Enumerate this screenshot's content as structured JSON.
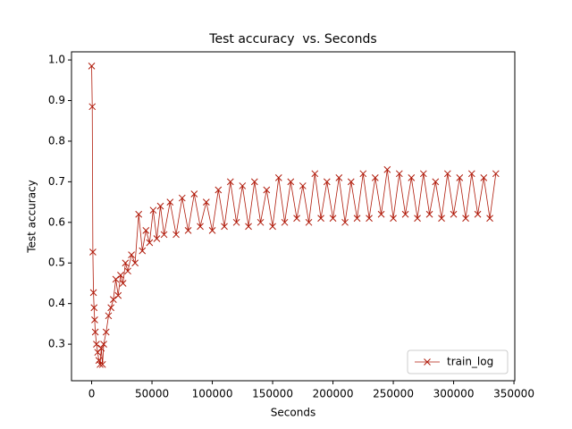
{
  "chart_data": {
    "type": "line",
    "title": "Test accuracy  vs. Seconds",
    "x_label": "Seconds",
    "y_label": "Test accuracy",
    "x": [
      0,
      500,
      1000,
      1500,
      2000,
      2500,
      3000,
      4000,
      5000,
      6000,
      7000,
      8000,
      9000,
      10000,
      12000,
      14000,
      16000,
      18000,
      20000,
      22000,
      24000,
      26000,
      28000,
      30000,
      33000,
      36000,
      39000,
      42000,
      45000,
      48000,
      51000,
      54000,
      57000,
      60000,
      65000,
      70000,
      75000,
      80000,
      85000,
      90000,
      95000,
      100000,
      105000,
      110000,
      115000,
      120000,
      125000,
      130000,
      135000,
      140000,
      145000,
      150000,
      155000,
      160000,
      165000,
      170000,
      175000,
      180000,
      185000,
      190000,
      195000,
      200000,
      205000,
      210000,
      215000,
      220000,
      225000,
      230000,
      235000,
      240000,
      245000,
      250000,
      255000,
      260000,
      265000,
      270000,
      275000,
      280000,
      285000,
      290000,
      295000,
      300000,
      305000,
      310000,
      315000,
      320000,
      325000,
      330000,
      335000
    ],
    "series": [
      {
        "name": "train_log",
        "color": "#b01a0a",
        "values": [
          0.985,
          0.885,
          0.527,
          0.427,
          0.39,
          0.36,
          0.33,
          0.3,
          0.28,
          0.26,
          0.25,
          0.29,
          0.25,
          0.3,
          0.33,
          0.37,
          0.39,
          0.41,
          0.46,
          0.42,
          0.47,
          0.45,
          0.5,
          0.48,
          0.52,
          0.5,
          0.62,
          0.53,
          0.58,
          0.55,
          0.63,
          0.56,
          0.64,
          0.57,
          0.65,
          0.57,
          0.66,
          0.58,
          0.67,
          0.59,
          0.65,
          0.58,
          0.68,
          0.59,
          0.7,
          0.6,
          0.69,
          0.59,
          0.7,
          0.6,
          0.68,
          0.59,
          0.71,
          0.6,
          0.7,
          0.61,
          0.69,
          0.6,
          0.72,
          0.61,
          0.7,
          0.61,
          0.71,
          0.6,
          0.7,
          0.61,
          0.72,
          0.61,
          0.71,
          0.62,
          0.73,
          0.61,
          0.72,
          0.62,
          0.71,
          0.61,
          0.72,
          0.62,
          0.7,
          0.61,
          0.72,
          0.62,
          0.71,
          0.61,
          0.72,
          0.62,
          0.71,
          0.61,
          0.72
        ]
      }
    ],
    "xlim": [
      -16700,
      350700
    ],
    "ylim": [
      0.21,
      1.02
    ],
    "xticks": [
      0,
      50000,
      100000,
      150000,
      200000,
      250000,
      300000,
      350000
    ],
    "yticks": [
      0.3,
      0.4,
      0.5,
      0.6,
      0.7,
      0.8,
      0.9,
      {
        "value": 1,
        "label": "1.0"
      }
    ],
    "legend_position": "lower right"
  }
}
